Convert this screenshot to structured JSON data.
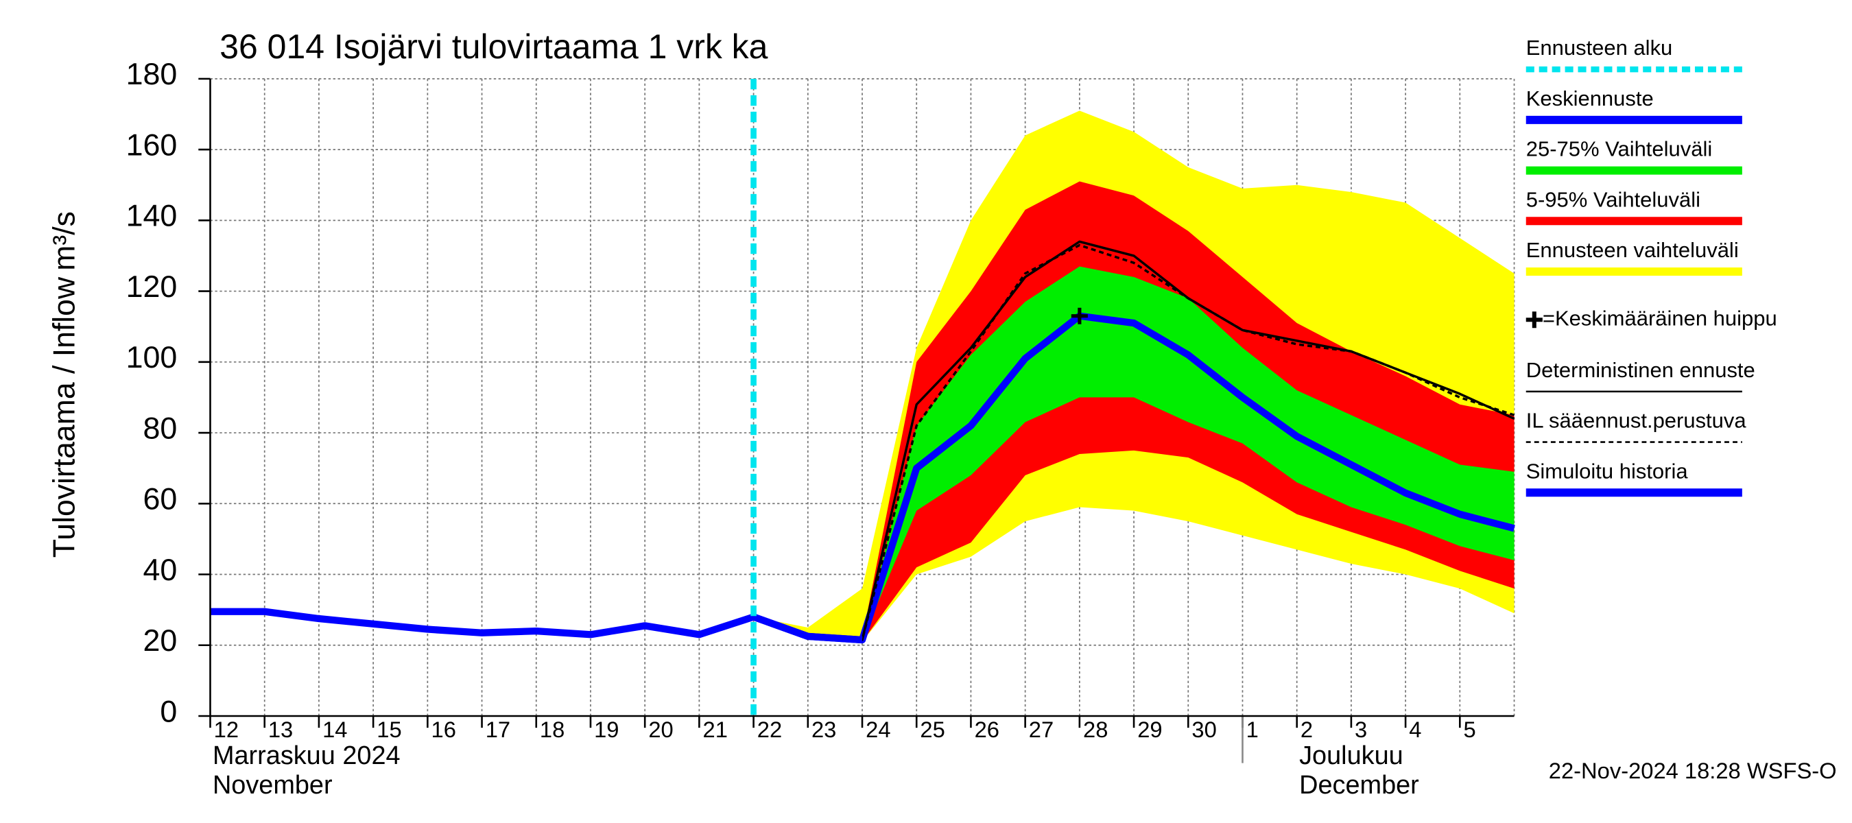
{
  "chart_data": {
    "type": "line",
    "title": "36 014 Isojärvi tulovirtaama 1 vrk ka",
    "y_label": "Tulovirtaama / Inflow",
    "y_unit": "m³/s",
    "footer": "22-Nov-2024 18:28 WSFS-O",
    "x": [
      "2024-11-12",
      "2024-11-13",
      "2024-11-14",
      "2024-11-15",
      "2024-11-16",
      "2024-11-17",
      "2024-11-18",
      "2024-11-19",
      "2024-11-20",
      "2024-11-21",
      "2024-11-22",
      "2024-11-23",
      "2024-11-24",
      "2024-11-25",
      "2024-11-26",
      "2024-11-27",
      "2024-11-28",
      "2024-11-29",
      "2024-11-30",
      "2024-12-01",
      "2024-12-02",
      "2024-12-03",
      "2024-12-04",
      "2024-12-05",
      "2024-12-06"
    ],
    "xlim": [
      "2024-11-12",
      "2024-12-06"
    ],
    "xticks": [
      {
        "value": "2024-11-12",
        "label": "12"
      },
      {
        "value": "2024-11-13",
        "label": "13"
      },
      {
        "value": "2024-11-14",
        "label": "14"
      },
      {
        "value": "2024-11-15",
        "label": "15"
      },
      {
        "value": "2024-11-16",
        "label": "16"
      },
      {
        "value": "2024-11-17",
        "label": "17"
      },
      {
        "value": "2024-11-18",
        "label": "18"
      },
      {
        "value": "2024-11-19",
        "label": "19"
      },
      {
        "value": "2024-11-20",
        "label": "20"
      },
      {
        "value": "2024-11-21",
        "label": "21"
      },
      {
        "value": "2024-11-22",
        "label": "22"
      },
      {
        "value": "2024-11-23",
        "label": "23"
      },
      {
        "value": "2024-11-24",
        "label": "24"
      },
      {
        "value": "2024-11-25",
        "label": "25"
      },
      {
        "value": "2024-11-26",
        "label": "26"
      },
      {
        "value": "2024-11-27",
        "label": "27"
      },
      {
        "value": "2024-11-28",
        "label": "28"
      },
      {
        "value": "2024-11-29",
        "label": "29"
      },
      {
        "value": "2024-11-30",
        "label": "30"
      },
      {
        "value": "2024-12-01",
        "label": "1"
      },
      {
        "value": "2024-12-02",
        "label": "2"
      },
      {
        "value": "2024-12-03",
        "label": "3"
      },
      {
        "value": "2024-12-04",
        "label": "4"
      },
      {
        "value": "2024-12-05",
        "label": "5"
      }
    ],
    "months": [
      {
        "start": "2024-11-12",
        "labels": [
          "Marraskuu 2024",
          "November"
        ]
      },
      {
        "start": "2024-12-01",
        "labels": [
          "Joulukuu",
          "December"
        ]
      }
    ],
    "ylim": [
      0,
      180
    ],
    "yticks": [
      0,
      20,
      40,
      60,
      80,
      100,
      120,
      140,
      160,
      180
    ],
    "grid": true,
    "forecast_start": {
      "name": "Ennusteen alku",
      "x": "2024-11-22",
      "color": "#00e5ee"
    },
    "series": [
      {
        "name": "Keskiennuste",
        "kind": "line",
        "color": "#0000ff",
        "values": [
          null,
          null,
          null,
          null,
          null,
          null,
          null,
          null,
          null,
          null,
          28,
          22.5,
          21.5,
          70,
          82,
          101,
          113,
          111,
          102,
          90,
          79,
          71,
          63,
          57,
          53
        ]
      },
      {
        "name": "25-75% Vaihteluväli",
        "kind": "band",
        "color": "#00ee00",
        "upper": [
          null,
          null,
          null,
          null,
          null,
          null,
          null,
          null,
          null,
          null,
          28,
          22.5,
          21.5,
          82,
          102,
          117,
          127,
          124,
          118,
          104,
          92,
          85,
          78,
          71,
          69
        ],
        "lower": [
          null,
          null,
          null,
          null,
          null,
          null,
          null,
          null,
          null,
          null,
          28,
          22.5,
          21.5,
          58,
          68,
          83,
          90,
          90,
          83,
          77,
          66,
          59,
          54,
          48,
          44
        ]
      },
      {
        "name": "5-95% Vaihteluväli",
        "kind": "band",
        "color": "#ff0000",
        "upper": [
          null,
          null,
          null,
          null,
          null,
          null,
          null,
          null,
          null,
          null,
          28,
          23,
          22,
          100,
          120,
          143,
          151,
          147,
          137,
          124,
          111,
          103,
          96,
          88,
          85
        ],
        "lower": [
          null,
          null,
          null,
          null,
          null,
          null,
          null,
          null,
          null,
          null,
          28,
          22,
          21,
          42,
          49,
          68,
          74,
          75,
          73,
          66,
          57,
          52,
          47,
          41,
          36
        ]
      },
      {
        "name": "Ennusteen vaihteluväli",
        "kind": "band",
        "color": "#ffff00",
        "upper": [
          null,
          null,
          null,
          null,
          null,
          null,
          null,
          null,
          null,
          null,
          28,
          25,
          36,
          104,
          140,
          164,
          171,
          165,
          155,
          149,
          150,
          148,
          145,
          135,
          125
        ],
        "lower": [
          null,
          null,
          null,
          null,
          null,
          null,
          null,
          null,
          null,
          null,
          28,
          22,
          21,
          40,
          45,
          55,
          59,
          58,
          55,
          51,
          47,
          43,
          40,
          36,
          29
        ]
      },
      {
        "name": "=Keskimääräinen huippu",
        "kind": "peak",
        "color": "#000000",
        "x": "2024-11-28",
        "value": 113
      },
      {
        "name": "Deterministinen ennuste",
        "kind": "line",
        "thin": true,
        "color": "#000000",
        "values": [
          null,
          null,
          null,
          null,
          null,
          null,
          null,
          null,
          null,
          null,
          28,
          22.5,
          21.5,
          88,
          104,
          124,
          134,
          130,
          118,
          109,
          106,
          103,
          97,
          91,
          84
        ]
      },
      {
        "name": "IL sääennust.perustuva",
        "kind": "line",
        "thin": true,
        "dashed": true,
        "color": "#000000",
        "values": [
          null,
          null,
          null,
          null,
          null,
          null,
          null,
          null,
          null,
          null,
          28,
          22.5,
          21.5,
          82,
          103,
          125,
          133,
          128,
          118,
          109,
          105,
          103,
          97,
          90,
          85
        ]
      },
      {
        "name": "Simuloitu historia",
        "kind": "line",
        "color": "#0000ff",
        "values": [
          29.5,
          29.5,
          27.5,
          26,
          24.5,
          23.5,
          24,
          23,
          25.5,
          23,
          28,
          22.5,
          21.5,
          null,
          null,
          null,
          null,
          null,
          null,
          null,
          null,
          null,
          null,
          null,
          null
        ]
      }
    ]
  }
}
